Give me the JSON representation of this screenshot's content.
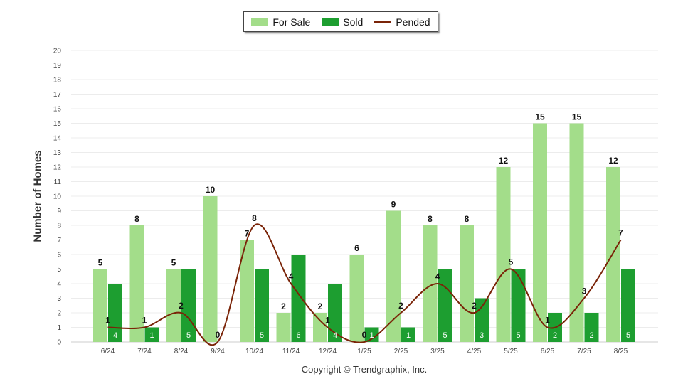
{
  "chart_data": {
    "type": "bar",
    "title": "",
    "xlabel": "",
    "ylabel": "Number of Homes",
    "ylim": [
      0,
      20
    ],
    "yticks": [
      0,
      1,
      2,
      3,
      4,
      5,
      6,
      7,
      8,
      9,
      10,
      11,
      12,
      13,
      14,
      15,
      16,
      17,
      18,
      19,
      20
    ],
    "grid": true,
    "legend_position": "top-center",
    "categories": [
      "6/24",
      "7/24",
      "8/24",
      "9/24",
      "10/24",
      "11/24",
      "12/24",
      "1/25",
      "2/25",
      "3/25",
      "4/25",
      "5/25",
      "6/25",
      "7/25",
      "8/25"
    ],
    "series": [
      {
        "name": "For Sale",
        "type": "bar",
        "color": "#a3dd8a",
        "values": [
          5,
          8,
          5,
          10,
          7,
          2,
          2,
          6,
          9,
          8,
          8,
          12,
          15,
          15,
          12
        ]
      },
      {
        "name": "Sold",
        "type": "bar",
        "color": "#1d9e30",
        "values": [
          4,
          1,
          5,
          0,
          5,
          6,
          4,
          1,
          1,
          5,
          3,
          5,
          2,
          2,
          5
        ]
      },
      {
        "name": "Pended",
        "type": "line",
        "color": "#7a2408",
        "values": [
          1,
          1,
          2,
          0,
          8,
          4,
          1,
          0,
          2,
          4,
          2,
          5,
          1,
          3,
          7
        ]
      }
    ]
  },
  "footer": {
    "copyright": "Copyright © Trendgraphix, Inc."
  }
}
